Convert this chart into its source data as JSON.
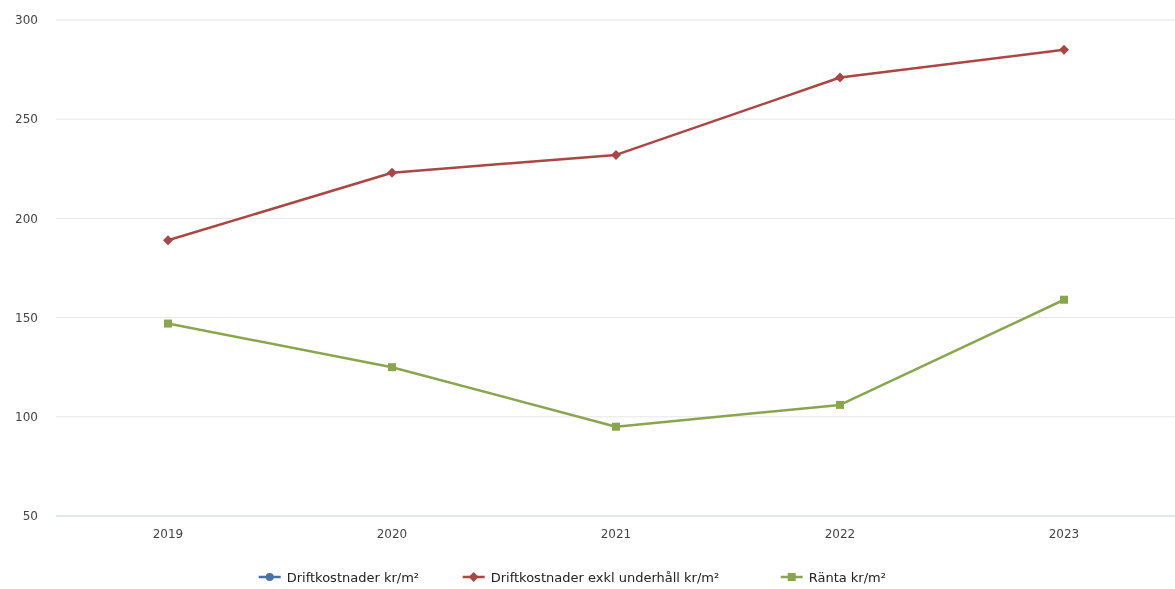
{
  "chart_data": {
    "type": "line",
    "categories": [
      "2019",
      "2020",
      "2021",
      "2022",
      "2023"
    ],
    "series": [
      {
        "name": "Driftkostnader kr/m²",
        "color": "#4572a7",
        "marker": "circle",
        "values": [
          null,
          null,
          null,
          null,
          null
        ]
      },
      {
        "name": "Driftkostnader exkl underhåll kr/m²",
        "color": "#aa4643",
        "marker": "diamond",
        "values": [
          189,
          223,
          232,
          271,
          285
        ]
      },
      {
        "name": "Ränta kr/m²",
        "color": "#89a54e",
        "marker": "square",
        "values": [
          147,
          125,
          95,
          106,
          159
        ]
      }
    ],
    "ylim": [
      50,
      300
    ],
    "yticks": [
      50,
      100,
      150,
      200,
      250,
      300
    ],
    "grid": "y",
    "legend": "bottom"
  }
}
